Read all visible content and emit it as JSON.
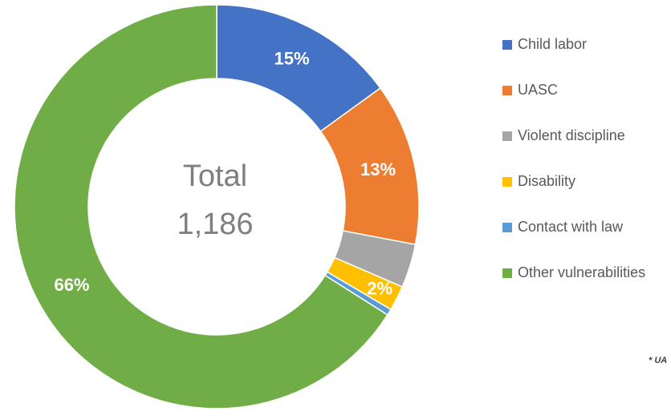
{
  "chart_data": {
    "type": "donut",
    "center_text": [
      "Total",
      "1,186"
    ],
    "categories": [
      "Child labor",
      "UASC",
      "Violent discipline",
      "Disability",
      "Contact with law",
      "Other vulnerabilities"
    ],
    "values": [
      15,
      13,
      3.5,
      2,
      0.5,
      66
    ],
    "value_labels": [
      "15%",
      "13%",
      null,
      "2%",
      null,
      "66%"
    ],
    "colors": [
      "#4472c4",
      "#ed7d31",
      "#a5a5a5",
      "#ffc000",
      "#5b9bd5",
      "#70ad47"
    ],
    "legend": "right",
    "annotation": "* UA"
  }
}
